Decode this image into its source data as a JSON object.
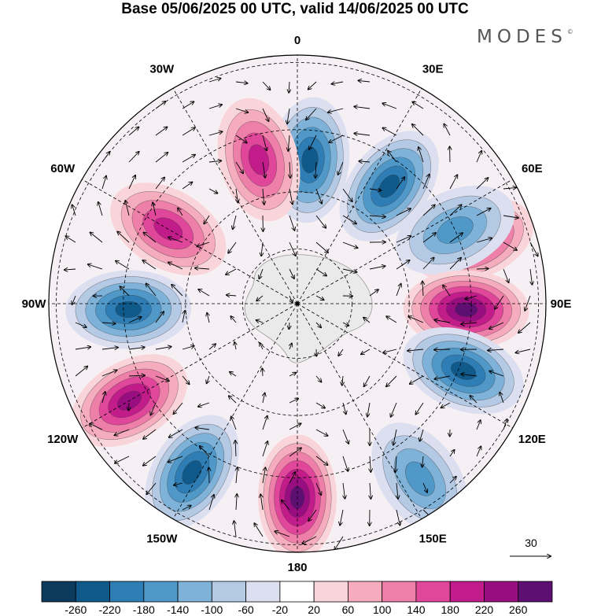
{
  "title": "Base 05/06/2025 00 UTC, valid 14/06/2025 00 UTC",
  "brand": "MODES",
  "brand_mark": "©",
  "map": {
    "projection": "south-polar-stereographic",
    "longitude_labels": [
      "0",
      "30E",
      "60E",
      "90E",
      "120E",
      "150E",
      "180",
      "150W",
      "120W",
      "90W",
      "60W",
      "30W"
    ],
    "vector_reference": "30"
  },
  "colorbar": {
    "ticks": [
      "-260",
      "-220",
      "-180",
      "-140",
      "-100",
      "-60",
      "-20",
      "20",
      "60",
      "100",
      "140",
      "180",
      "220",
      "260"
    ],
    "colors": [
      "#0b3a5c",
      "#0f5a8a",
      "#2e7db5",
      "#4f98c8",
      "#7fb2d8",
      "#b4c9e4",
      "#dcdff0",
      "#ffffff",
      "#f9d4d8",
      "#f5adbd",
      "#ee7fa9",
      "#e0479a",
      "#c21b8a",
      "#980d80",
      "#5e0f72"
    ]
  },
  "anomalies": [
    {
      "lon": 5,
      "r": 0.58,
      "value": -230
    },
    {
      "lon": 345,
      "r": 0.6,
      "value": 190
    },
    {
      "lon": 38,
      "r": 0.6,
      "value": -230
    },
    {
      "lon": 70,
      "r": 0.75,
      "value": 200
    },
    {
      "lon": 65,
      "r": 0.7,
      "value": -140
    },
    {
      "lon": 92,
      "r": 0.68,
      "value": 240
    },
    {
      "lon": 112,
      "r": 0.72,
      "value": -220
    },
    {
      "lon": 145,
      "r": 0.86,
      "value": -140
    },
    {
      "lon": 180,
      "r": 0.78,
      "value": 240
    },
    {
      "lon": 212,
      "r": 0.8,
      "value": -200
    },
    {
      "lon": 240,
      "r": 0.78,
      "value": 220
    },
    {
      "lon": 268,
      "r": 0.68,
      "value": -210
    },
    {
      "lon": 300,
      "r": 0.6,
      "value": 180
    }
  ]
}
